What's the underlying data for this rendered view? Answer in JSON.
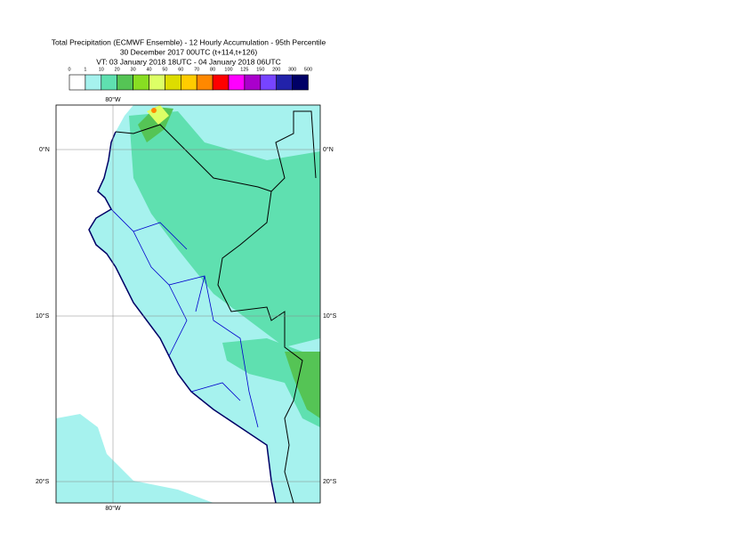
{
  "header": {
    "title": "Total Precipitation (ECMWF Ensemble) - 12 Hourly Accumulation - 95th Percentile",
    "subtitle": "30 December 2017 00UTC (t+114,t+126)",
    "valid_time": "VT: 03 January 2018 18UTC - 04 January 2018 06UTC"
  },
  "legend": {
    "labels": [
      0,
      1,
      10,
      20,
      30,
      40,
      50,
      60,
      70,
      80,
      100,
      125,
      150,
      200,
      300,
      500
    ],
    "colors": [
      "#ffffff",
      "#a6f2ee",
      "#5fe0b0",
      "#55c455",
      "#88dd22",
      "#ddff66",
      "#dddd00",
      "#ffcc00",
      "#ff8800",
      "#ff0000",
      "#ff00ff",
      "#aa00cc",
      "#7744ff",
      "#2222aa",
      "#000066"
    ]
  },
  "map": {
    "lon_labels": [
      "80°W"
    ],
    "lat_labels": [
      "0°N",
      "10°S",
      "20°S"
    ]
  }
}
